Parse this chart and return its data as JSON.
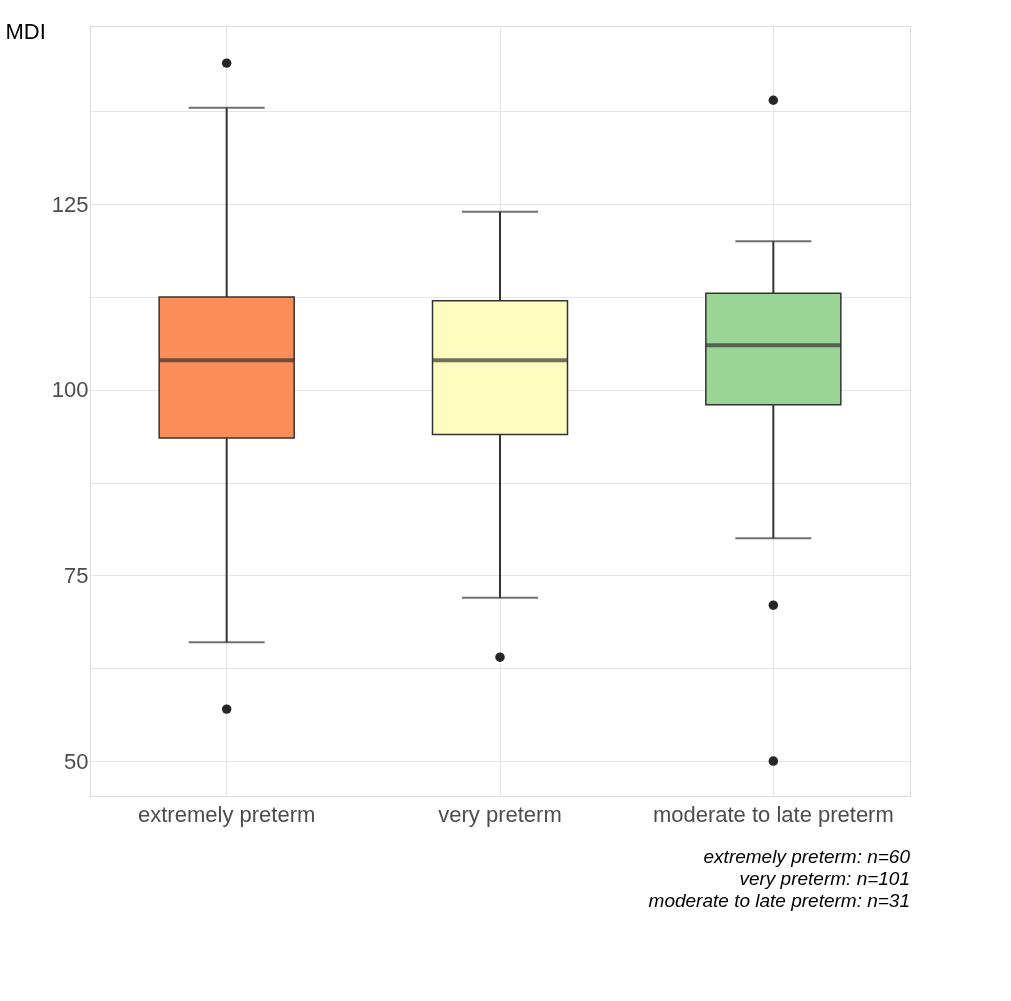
{
  "chart_data": {
    "type": "box",
    "ylabel": "MDI",
    "categories": [
      "extremely preterm",
      "very preterm",
      "moderate to late preterm"
    ],
    "colors": [
      "#fc8d59",
      "#fffcbf",
      "#99d594"
    ],
    "boxes": [
      {
        "low": 66,
        "q1": 93.5,
        "median": 104,
        "q3": 112.5,
        "high": 138,
        "outliers": [
          144,
          57
        ]
      },
      {
        "low": 72,
        "q1": 94,
        "median": 104,
        "q3": 112,
        "high": 124,
        "outliers": [
          64
        ]
      },
      {
        "low": 80,
        "q1": 98,
        "median": 106,
        "q3": 113,
        "high": 120,
        "outliers": [
          139,
          71,
          50
        ]
      }
    ],
    "ylim": [
      45.3,
      149
    ],
    "yticks": [
      50,
      {
        "value": 62.5,
        "label": null
      },
      75,
      {
        "value": 87.5,
        "label": null
      },
      100,
      {
        "value": 112.5,
        "label": null
      },
      125,
      {
        "value": 137.5,
        "label": null
      }
    ],
    "grid": true,
    "annotations": [
      "extremely preterm: n=60",
      "very preterm: n=101",
      "moderate to late preterm: n=31"
    ]
  }
}
